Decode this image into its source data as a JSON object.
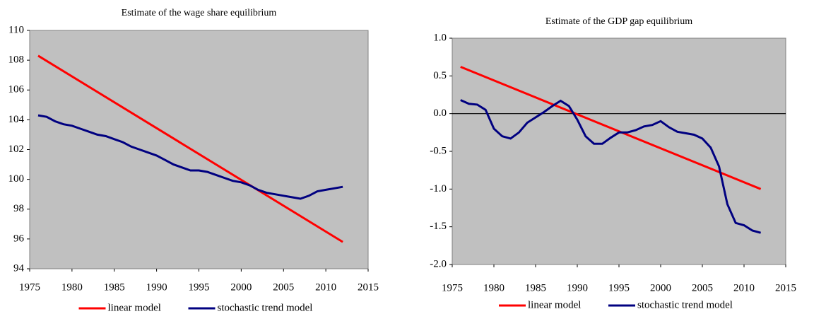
{
  "chart_data": [
    {
      "type": "line",
      "title": "Estimate of the wage share  equilibrium",
      "xlim": [
        1975,
        2015
      ],
      "xticks": [
        1975,
        1980,
        1985,
        1990,
        1995,
        2000,
        2005,
        2010,
        2015
      ],
      "ylim": [
        94,
        110
      ],
      "yticks": [
        94,
        96,
        98,
        100,
        102,
        104,
        106,
        108,
        110
      ],
      "zero_line": false,
      "legend": "bottom",
      "series": [
        {
          "name": "linear model",
          "color": "#ff0000",
          "x": [
            1976,
            2012
          ],
          "values": [
            108.3,
            95.8
          ]
        },
        {
          "name": "stochastic trend model",
          "color": "#000080",
          "x": [
            1976,
            1977,
            1978,
            1979,
            1980,
            1981,
            1982,
            1983,
            1984,
            1985,
            1986,
            1987,
            1988,
            1989,
            1990,
            1991,
            1992,
            1993,
            1994,
            1995,
            1996,
            1997,
            1998,
            1999,
            2000,
            2001,
            2002,
            2003,
            2004,
            2005,
            2006,
            2007,
            2008,
            2009,
            2010,
            2011,
            2012
          ],
          "values": [
            104.3,
            104.2,
            103.9,
            103.7,
            103.6,
            103.4,
            103.2,
            103.0,
            102.9,
            102.7,
            102.5,
            102.2,
            102.0,
            101.8,
            101.6,
            101.3,
            101.0,
            100.8,
            100.6,
            100.6,
            100.5,
            100.3,
            100.1,
            99.9,
            99.8,
            99.6,
            99.3,
            99.1,
            99.0,
            98.9,
            98.8,
            98.7,
            98.9,
            99.2,
            99.3,
            99.4,
            99.5
          ]
        }
      ]
    },
    {
      "type": "line",
      "title": "Estimate of the GDP gap  equilibrium",
      "xlim": [
        1975,
        2015
      ],
      "xticks": [
        1975,
        1980,
        1985,
        1990,
        1995,
        2000,
        2005,
        2010,
        2015
      ],
      "ylim": [
        -2,
        1
      ],
      "yticks": [
        {
          "value": -2,
          "label": "-2.0"
        },
        -1.5,
        {
          "value": -1,
          "label": "-1.0"
        },
        -0.5,
        {
          "value": 0,
          "label": "0.0"
        },
        0.5,
        {
          "value": 1,
          "label": "1.0"
        }
      ],
      "zero_line": true,
      "legend": "bottom",
      "series": [
        {
          "name": "linear model",
          "color": "#ff0000",
          "x": [
            1976,
            2012
          ],
          "values": [
            0.62,
            -1.0
          ]
        },
        {
          "name": "stochastic trend model",
          "color": "#000080",
          "x": [
            1976,
            1977,
            1978,
            1979,
            1980,
            1981,
            1982,
            1983,
            1984,
            1985,
            1986,
            1987,
            1988,
            1989,
            1990,
            1991,
            1992,
            1993,
            1994,
            1995,
            1996,
            1997,
            1998,
            1999,
            2000,
            2001,
            2002,
            2003,
            2004,
            2005,
            2006,
            2007,
            2008,
            2009,
            2010,
            2011,
            2012
          ],
          "values": [
            0.18,
            0.13,
            0.12,
            0.05,
            -0.2,
            -0.3,
            -0.33,
            -0.25,
            -0.12,
            -0.05,
            0.02,
            0.1,
            0.17,
            0.1,
            -0.08,
            -0.3,
            -0.4,
            -0.4,
            -0.32,
            -0.25,
            -0.25,
            -0.22,
            -0.17,
            -0.15,
            -0.1,
            -0.18,
            -0.24,
            -0.26,
            -0.28,
            -0.33,
            -0.45,
            -0.7,
            -1.2,
            -1.45,
            -1.48,
            -1.55,
            -1.58
          ]
        }
      ]
    }
  ]
}
